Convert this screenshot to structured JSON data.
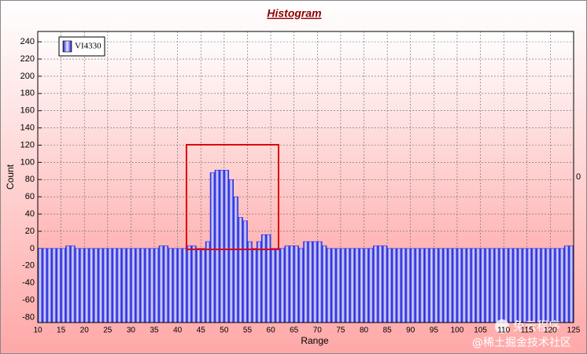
{
  "chart_data": {
    "type": "histogram",
    "title": "Histogram",
    "xlabel": "Range",
    "ylabel": "Count",
    "y2label": "0",
    "legend": "top-left",
    "grid": true,
    "series": [
      {
        "name": "VI4330",
        "color": "#2020ee",
        "bins": [
          10,
          11,
          12,
          13,
          14,
          15,
          16,
          17,
          18,
          19,
          20,
          21,
          22,
          23,
          24,
          25,
          26,
          27,
          28,
          29,
          30,
          31,
          32,
          33,
          34,
          35,
          36,
          37,
          38,
          39,
          40,
          41,
          42,
          43,
          44,
          45,
          46,
          47,
          48,
          49,
          50,
          51,
          52,
          53,
          54,
          55,
          56,
          57,
          58,
          59,
          60,
          61,
          62,
          63,
          64,
          65,
          66,
          67,
          68,
          69,
          70,
          71,
          72,
          73,
          74,
          75,
          76,
          77,
          78,
          79,
          80,
          81,
          82,
          83,
          84,
          85,
          86,
          87,
          88,
          89,
          90,
          91,
          92,
          93,
          94,
          95,
          96,
          97,
          98,
          99,
          100,
          101,
          102,
          103,
          104,
          105,
          106,
          107,
          108,
          109,
          110,
          111,
          112,
          113,
          114,
          115,
          116,
          117,
          118,
          119,
          120,
          121,
          122,
          123,
          124,
          125
        ],
        "values": [
          0,
          0,
          0,
          0,
          0,
          0,
          3,
          3,
          0,
          0,
          0,
          0,
          0,
          0,
          0,
          0,
          0,
          0,
          0,
          0,
          0,
          0,
          0,
          0,
          0,
          0,
          3,
          3,
          0,
          0,
          0,
          0,
          3,
          3,
          0,
          0,
          8,
          88,
          91,
          91,
          91,
          80,
          60,
          36,
          32,
          8,
          0,
          8,
          16,
          16,
          0,
          0,
          0,
          3,
          3,
          3,
          0,
          8,
          8,
          8,
          8,
          3,
          0,
          0,
          0,
          0,
          0,
          0,
          0,
          0,
          0,
          0,
          3,
          3,
          3,
          0,
          0,
          0,
          0,
          0,
          0,
          0,
          0,
          0,
          0,
          0,
          0,
          0,
          0,
          0,
          0,
          0,
          0,
          0,
          0,
          0,
          0,
          0,
          0,
          0,
          0,
          0,
          0,
          0,
          0,
          0,
          0,
          0,
          0,
          0,
          0,
          0,
          0,
          3,
          3
        ]
      }
    ],
    "xlim": [
      10,
      125
    ],
    "xticks": [
      10,
      15,
      20,
      25,
      30,
      35,
      40,
      45,
      50,
      55,
      60,
      65,
      70,
      75,
      80,
      85,
      90,
      95,
      100,
      105,
      110,
      115,
      120,
      125
    ],
    "ylim": [
      -86,
      252
    ],
    "yticks": [
      -80,
      -60,
      -40,
      -20,
      0,
      20,
      40,
      60,
      80,
      100,
      120,
      140,
      160,
      180,
      200,
      220,
      240
    ],
    "watermark": [
      "兔云程序",
      "@稀土掘金技术社区"
    ]
  }
}
